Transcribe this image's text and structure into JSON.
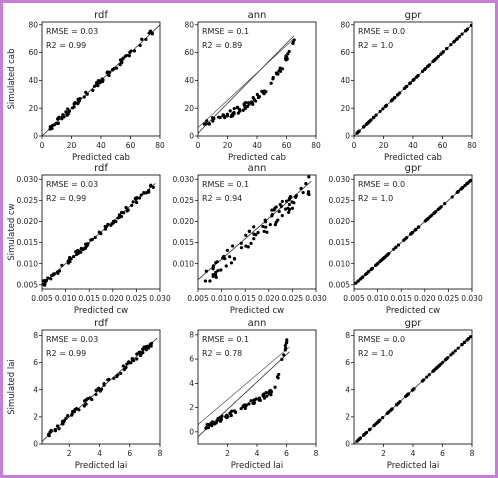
{
  "chart_data": [
    {
      "type": "scatter",
      "title": "rdf",
      "xlabel": "Predicted cab",
      "ylabel": "Simulated cab",
      "xlim": [
        0,
        80
      ],
      "ylim": [
        0,
        82
      ],
      "xticks": [
        0,
        20,
        40,
        60,
        80
      ],
      "yticks": [
        0,
        20,
        40,
        60,
        80
      ],
      "tick_labels_x": [
        "0",
        "20",
        "40",
        "60",
        "80"
      ],
      "tick_labels_y": [
        "0",
        "20",
        "40",
        "60",
        "80"
      ],
      "rmse_label": "RMSE = 0.03",
      "r2_label": "R2 = 0.99",
      "pattern": "tight",
      "point_range": [
        5,
        78
      ],
      "fit": [
        [
          0,
          0
        ],
        [
          80,
          80
        ]
      ],
      "fit2": null
    },
    {
      "type": "scatter",
      "title": "ann",
      "xlabel": "Predicted cab",
      "ylabel": "",
      "xlim": [
        0,
        80
      ],
      "ylim": [
        0,
        82
      ],
      "xticks": [
        0,
        20,
        40,
        60,
        80
      ],
      "yticks": [
        0,
        20,
        40,
        60,
        80
      ],
      "tick_labels_x": [
        "0",
        "20",
        "40",
        "60",
        "80"
      ],
      "tick_labels_y": [
        "0",
        "20",
        "40",
        "60",
        "80"
      ],
      "rmse_label": "RMSE = 0.1",
      "r2_label": "R2 = 0.89",
      "pattern": "curve",
      "point_range": [
        2,
        67
      ],
      "fit": [
        [
          0,
          2
        ],
        [
          65,
          72
        ]
      ],
      "fit2": [
        [
          0,
          6
        ],
        [
          65,
          70
        ]
      ]
    },
    {
      "type": "scatter",
      "title": "gpr",
      "xlabel": "Predicted cab",
      "ylabel": "",
      "xlim": [
        0,
        80
      ],
      "ylim": [
        0,
        82
      ],
      "xticks": [
        0,
        20,
        40,
        60,
        80
      ],
      "yticks": [
        0,
        20,
        40,
        60,
        80
      ],
      "tick_labels_x": [
        "0",
        "20",
        "40",
        "60",
        "80"
      ],
      "tick_labels_y": [
        "0",
        "20",
        "40",
        "60",
        "80"
      ],
      "rmse_label": "RMSE = 0.0",
      "r2_label": "R2 = 1.0",
      "pattern": "exact",
      "point_range": [
        2,
        80
      ],
      "fit": [
        [
          0,
          0
        ],
        [
          80,
          80
        ]
      ],
      "fit2": null
    },
    {
      "type": "scatter",
      "title": "rdf",
      "xlabel": "Predicted cw",
      "ylabel": "Simulated cw",
      "xlim": [
        0.005,
        0.03
      ],
      "ylim": [
        0.004,
        0.031
      ],
      "xticks": [
        0.005,
        0.01,
        0.015,
        0.02,
        0.025,
        0.03
      ],
      "yticks": [
        0.005,
        0.01,
        0.015,
        0.02,
        0.025,
        0.03
      ],
      "tick_labels_x": [
        "0.005",
        "0.010",
        "0.015",
        "0.020",
        "0.025",
        "0.030"
      ],
      "tick_labels_y": [
        "0.005",
        "0.010",
        "0.015",
        "0.020",
        "0.025",
        "0.030"
      ],
      "rmse_label": "RMSE = 0.03",
      "r2_label": "R2 = 0.99",
      "pattern": "tight",
      "point_range": [
        0.0052,
        0.0288
      ],
      "fit": [
        [
          0.005,
          0.005
        ],
        [
          0.029,
          0.029
        ]
      ],
      "fit2": null
    },
    {
      "type": "scatter",
      "title": "ann",
      "xlabel": "Predicted cw",
      "ylabel": "",
      "xlim": [
        0.005,
        0.03
      ],
      "ylim": [
        0.004,
        0.031
      ],
      "xticks": [
        0.005,
        0.01,
        0.015,
        0.02,
        0.025,
        0.03
      ],
      "yticks": [
        0.01,
        0.015,
        0.02,
        0.025,
        0.03
      ],
      "tick_labels_x": [
        "0.005",
        "0.010",
        "0.015",
        "0.020",
        "0.025",
        "0.030"
      ],
      "tick_labels_y": [
        "0.010",
        "0.015",
        "0.020",
        "0.025",
        "0.030"
      ],
      "rmse_label": "RMSE = 0.1",
      "r2_label": "R2 = 0.94",
      "pattern": "noisy",
      "point_range": [
        0.006,
        0.029
      ],
      "fit": [
        [
          0.005,
          0.0062
        ],
        [
          0.029,
          0.0295
        ]
      ],
      "fit2": null
    },
    {
      "type": "scatter",
      "title": "gpr",
      "xlabel": "Predicted cw",
      "ylabel": "",
      "xlim": [
        0.005,
        0.03
      ],
      "ylim": [
        0.004,
        0.031
      ],
      "xticks": [
        0.005,
        0.01,
        0.015,
        0.02,
        0.025,
        0.03
      ],
      "yticks": [
        0.005,
        0.01,
        0.015,
        0.02,
        0.025,
        0.03
      ],
      "tick_labels_x": [
        "0.005",
        "0.010",
        "0.015",
        "0.020",
        "0.025",
        "0.030"
      ],
      "tick_labels_y": [
        "0.005",
        "0.010",
        "0.015",
        "0.020",
        "0.025",
        "0.030"
      ],
      "rmse_label": "RMSE = 0.0",
      "r2_label": "R2 = 1.0",
      "pattern": "exact",
      "point_range": [
        0.0052,
        0.03
      ],
      "fit": [
        [
          0.005,
          0.005
        ],
        [
          0.03,
          0.03
        ]
      ],
      "fit2": null
    },
    {
      "type": "scatter",
      "title": "rdf",
      "xlabel": "Predicted lai",
      "ylabel": "Simulated lai",
      "xlim": [
        0.2,
        8
      ],
      "ylim": [
        0,
        8.4
      ],
      "xticks": [
        2,
        4,
        6,
        8
      ],
      "yticks": [
        0,
        2,
        4,
        6,
        8
      ],
      "tick_labels_x": [
        "2",
        "4",
        "6",
        "8"
      ],
      "tick_labels_y": [
        "0",
        "2",
        "4",
        "6",
        "8"
      ],
      "rmse_label": "RMSE = 0.03",
      "r2_label": "R2 = 0.99",
      "pattern": "tight",
      "point_range": [
        0.6,
        7.5
      ],
      "fit": [
        [
          0.2,
          0.2
        ],
        [
          7.8,
          7.8
        ]
      ],
      "fit2": null
    },
    {
      "type": "scatter",
      "title": "ann",
      "xlabel": "Predicted lai",
      "ylabel": "",
      "xlim": [
        0,
        8
      ],
      "ylim": [
        -1,
        8.4
      ],
      "xticks": [
        2,
        4,
        6,
        8
      ],
      "yticks": [
        0,
        2,
        4,
        6,
        8
      ],
      "tick_labels_x": [
        "2",
        "4",
        "6",
        "8"
      ],
      "tick_labels_y": [
        "0",
        "2",
        "4",
        "6",
        "8"
      ],
      "rmse_label": "RMSE = 0.1",
      "r2_label": "R2 = 0.78",
      "pattern": "hook",
      "point_range": [
        0.5,
        6.1
      ],
      "fit": [
        [
          0,
          -0.4
        ],
        [
          6.2,
          6.6
        ]
      ],
      "fit2": [
        [
          0,
          0.6
        ],
        [
          6.2,
          7.0
        ]
      ]
    },
    {
      "type": "scatter",
      "title": "gpr",
      "xlabel": "Predicted lai",
      "ylabel": "",
      "xlim": [
        0,
        8
      ],
      "ylim": [
        0,
        8.4
      ],
      "xticks": [
        2,
        4,
        6,
        8
      ],
      "yticks": [
        0,
        2,
        4,
        6,
        8
      ],
      "tick_labels_x": [
        "2",
        "4",
        "6",
        "8"
      ],
      "tick_labels_y": [
        "0",
        "2",
        "4",
        "6",
        "8"
      ],
      "rmse_label": "RMSE = 0.0",
      "r2_label": "R2 = 1.0",
      "pattern": "exact",
      "point_range": [
        0.2,
        8
      ],
      "fit": [
        [
          0,
          0
        ],
        [
          8,
          8
        ]
      ],
      "fit2": null
    }
  ]
}
